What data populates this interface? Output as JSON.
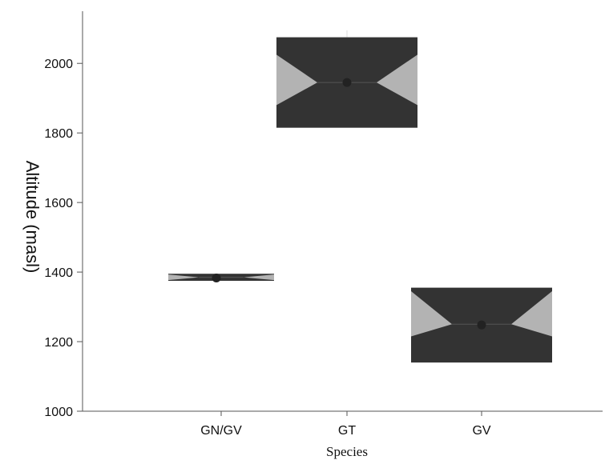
{
  "chart_data": {
    "type": "box",
    "title": "",
    "xlabel": "Species",
    "ylabel": "Altitude (masl)",
    "ylim": [
      1000,
      2150
    ],
    "yticks": [
      1000,
      1200,
      1400,
      1600,
      1800,
      2000
    ],
    "categories": [
      "GN/GV",
      "GT",
      "GV"
    ],
    "boxes": [
      {
        "category": "GN/GV",
        "q1": 1375,
        "median": 1385,
        "q3": 1395,
        "notch_low": 1377,
        "notch_high": 1393,
        "mean": 1383,
        "whisker_low": 1375,
        "whisker_high": 1395
      },
      {
        "category": "GT",
        "q1": 1815,
        "median": 1945,
        "q3": 2075,
        "notch_low": 1880,
        "notch_high": 2025,
        "mean": 1945,
        "whisker_low": 1815,
        "whisker_high": 2095
      },
      {
        "category": "GV",
        "q1": 1140,
        "median": 1250,
        "q3": 1355,
        "notch_low": 1215,
        "notch_high": 1345,
        "mean": 1248,
        "whisker_low": 1140,
        "whisker_high": 1355
      }
    ],
    "colors": {
      "box_fill": "#b3b3b3",
      "notch_fill": "#333333",
      "mean_point": "#222222",
      "axis": "#555555"
    },
    "grid": false
  }
}
